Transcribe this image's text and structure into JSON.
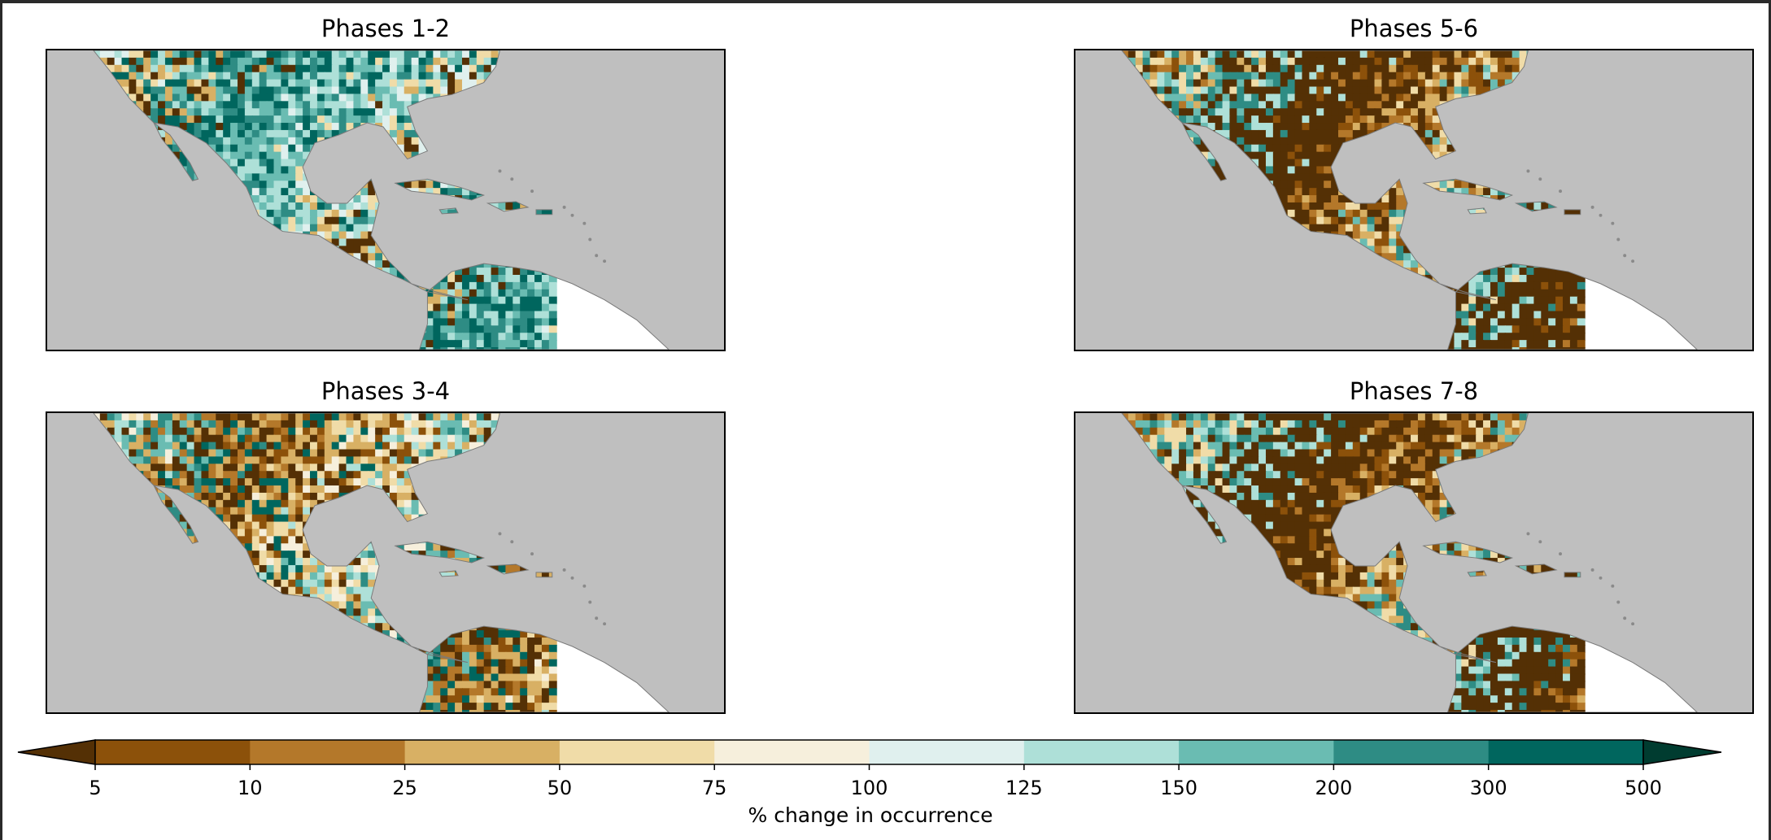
{
  "chart_data": {
    "type": "heatmap",
    "title": "",
    "panels": [
      {
        "title": "Phases 1-2",
        "dominant": "teal"
      },
      {
        "title": "Phases 5-6",
        "dominant": "brown"
      },
      {
        "title": "Phases 3-4",
        "dominant": "mixed"
      },
      {
        "title": "Phases 7-8",
        "dominant": "brown"
      }
    ],
    "colorbar": {
      "label": "% change in occurrence",
      "ticks": [
        "5",
        "10",
        "25",
        "50",
        "75",
        "100",
        "125",
        "150",
        "200",
        "300",
        "500"
      ],
      "colors": [
        "#8c510a",
        "#b4782a",
        "#d8b064",
        "#f0dca8",
        "#f6efdc",
        "#e0f0ee",
        "#aee0d8",
        "#6abcb2",
        "#2e8c84",
        "#00665e"
      ],
      "under_color": "#543005",
      "over_color": "#003c30",
      "extend": "both"
    },
    "land_ocean": {
      "ocean_color": "#bfbfbf",
      "missing_color": "#ffffff"
    }
  }
}
